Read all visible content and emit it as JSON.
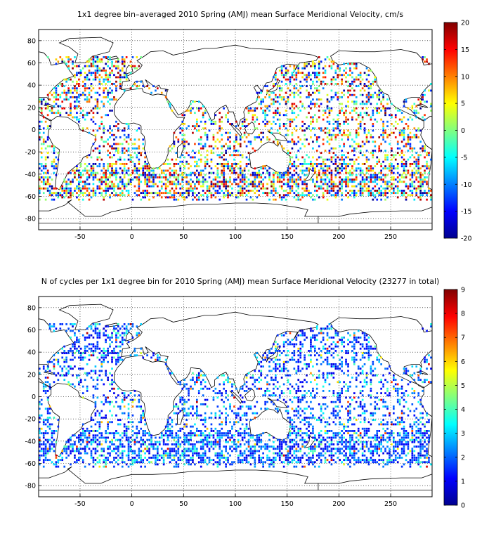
{
  "chart_data": [
    {
      "type": "heatmap",
      "title": "1x1 degree bin–averaged 2010 Spring (AMJ) mean Surface Meridional Velocity, cm/s",
      "xlabel": "",
      "ylabel": "",
      "xlim": [
        -90,
        290
      ],
      "ylim": [
        -90,
        90
      ],
      "x_ticks": [
        -50,
        0,
        50,
        100,
        150,
        200,
        250
      ],
      "y_ticks": [
        -80,
        -60,
        -40,
        -20,
        0,
        20,
        40,
        60,
        80
      ],
      "grid": true,
      "colorbar": {
        "ticks": [
          -20,
          -15,
          -10,
          -5,
          0,
          5,
          10,
          15,
          20
        ],
        "range": [
          -20,
          20
        ],
        "colormap": "jet"
      },
      "bin_size_deg": 1
    },
    {
      "type": "heatmap",
      "title": "N of cycles per 1x1 degree bin for 2010 Spring (AMJ) mean Surface Meridional Velocity (23277 in total)",
      "xlabel": "",
      "ylabel": "",
      "xlim": [
        -90,
        290
      ],
      "ylim": [
        -90,
        90
      ],
      "x_ticks": [
        -50,
        0,
        50,
        100,
        150,
        200,
        250
      ],
      "y_ticks": [
        -80,
        -60,
        -40,
        -20,
        0,
        20,
        40,
        60,
        80
      ],
      "grid": true,
      "colorbar": {
        "ticks": [
          0,
          1,
          2,
          3,
          4,
          5,
          6,
          7,
          8,
          9
        ],
        "range": [
          0,
          9
        ],
        "colormap": "jet"
      },
      "bin_size_deg": 1
    }
  ]
}
